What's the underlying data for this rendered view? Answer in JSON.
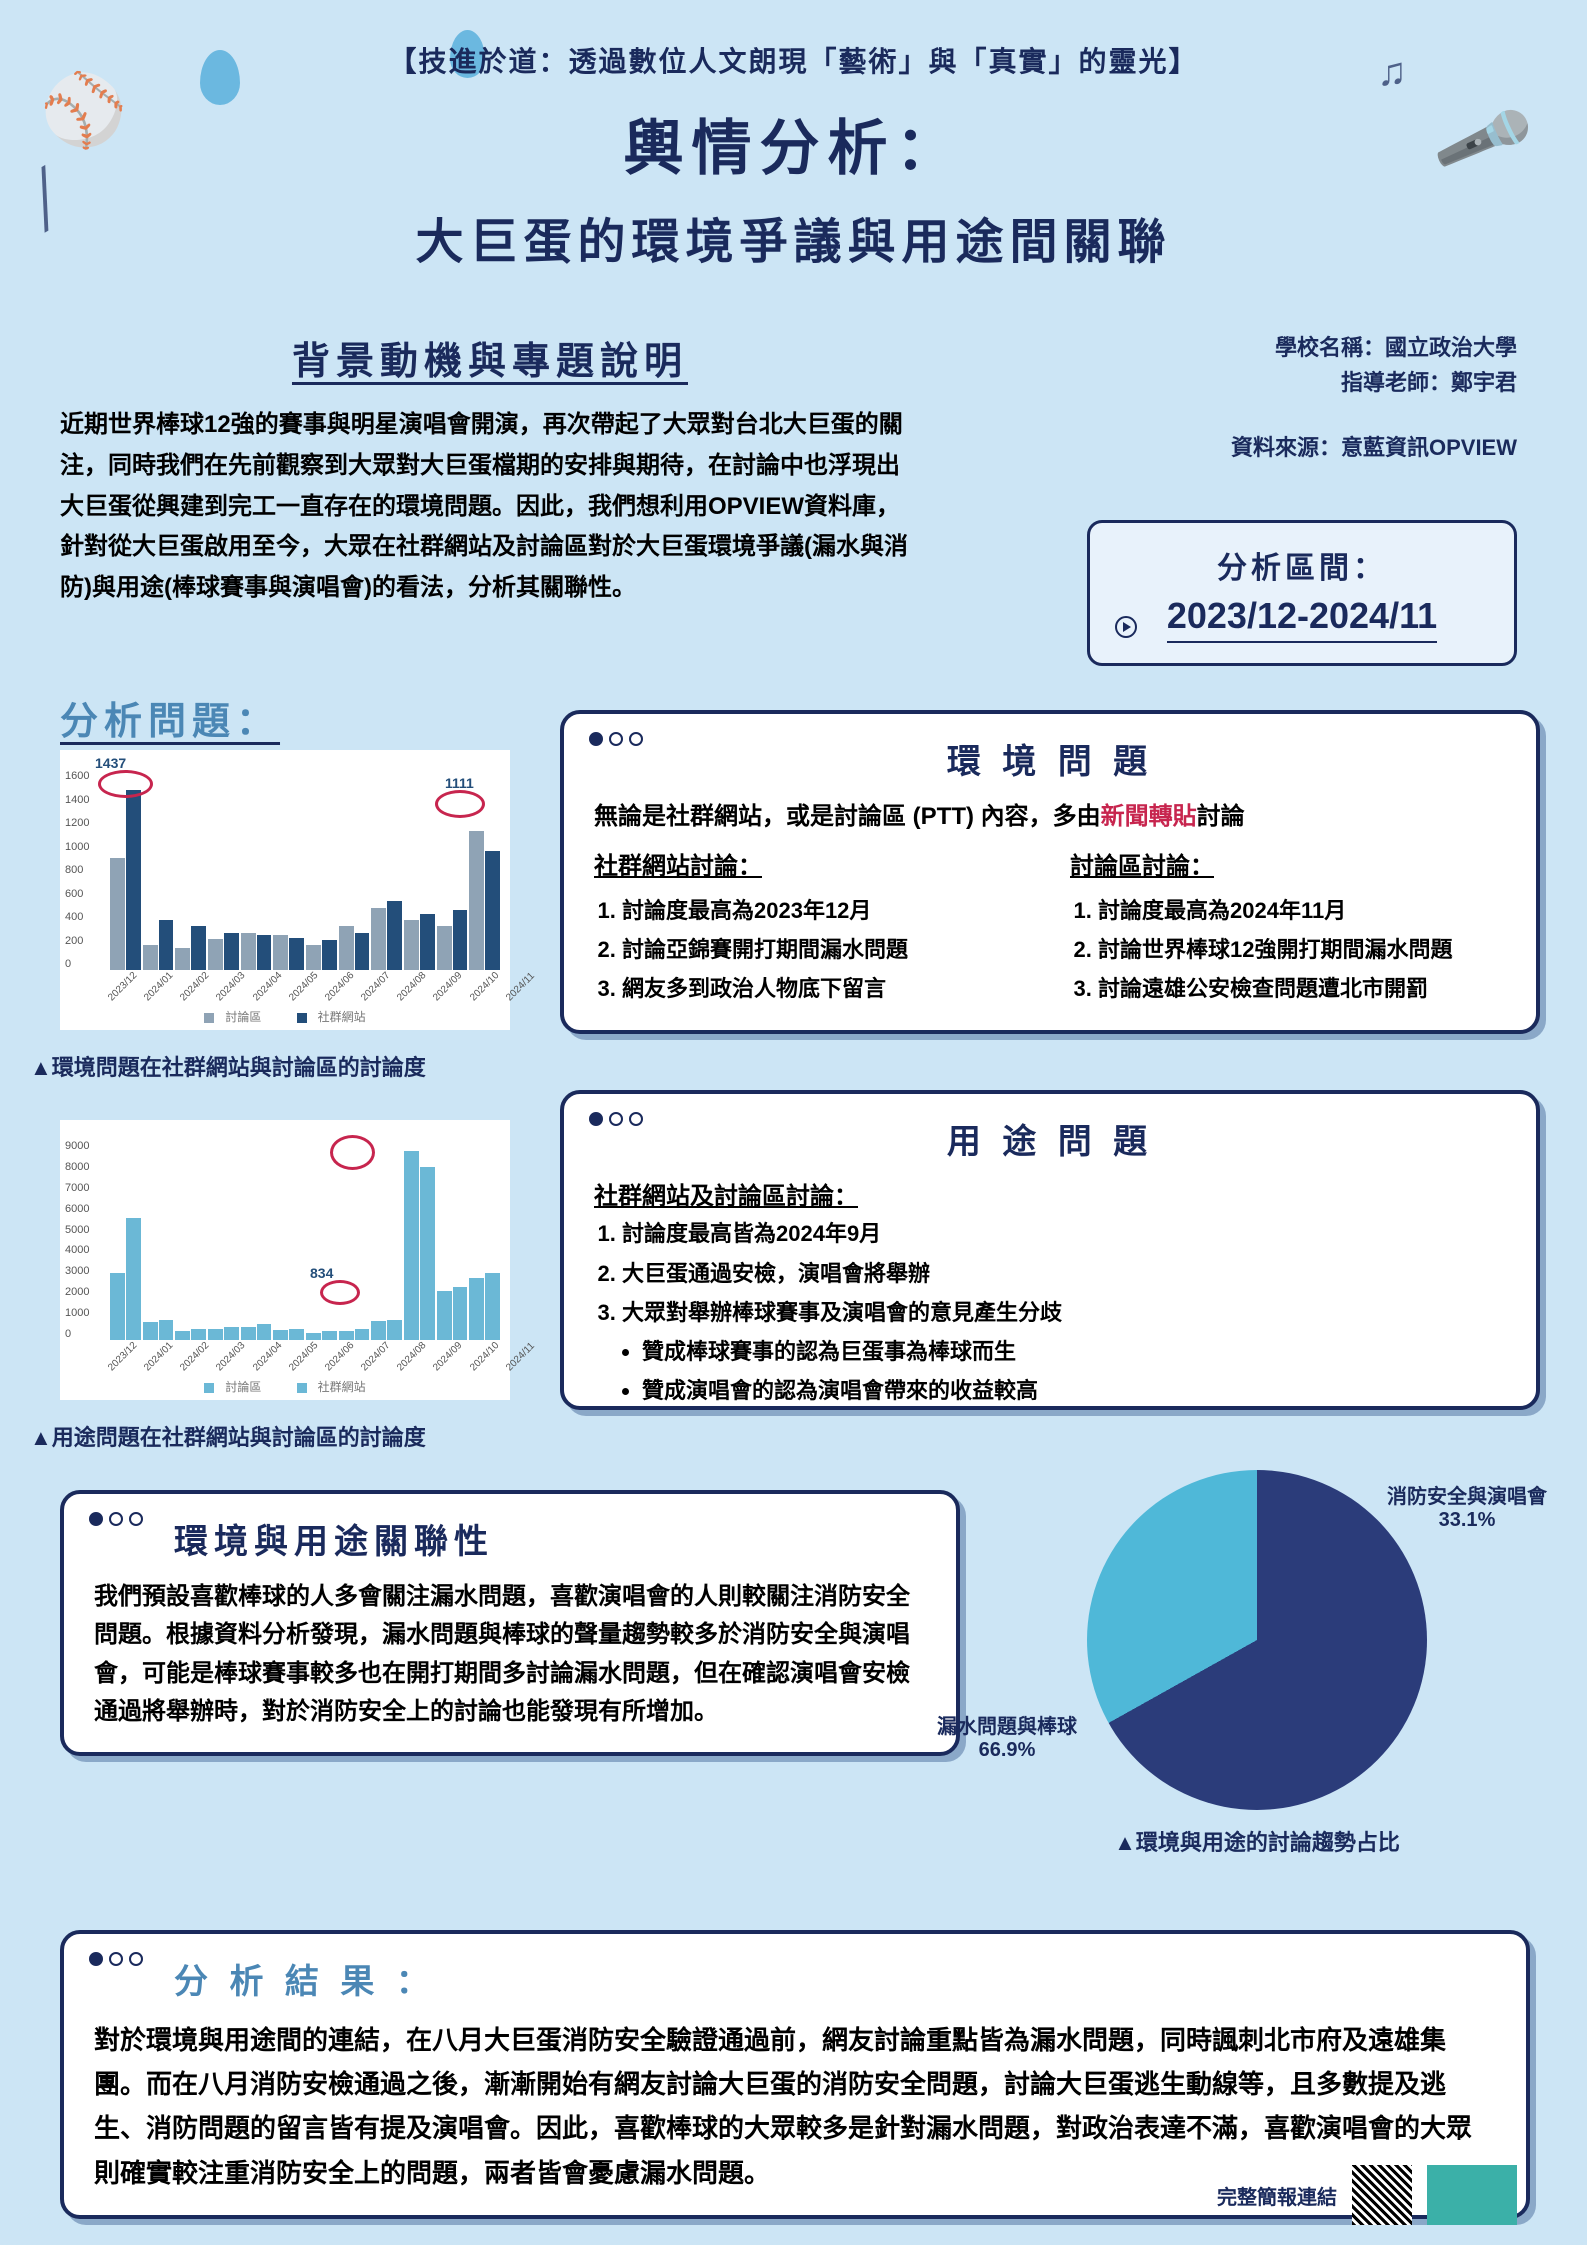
{
  "header": {
    "subtitle": "【技進於道：透過數位人文朗現「藝術」與「真實」的靈光】",
    "title1": "輿情分析：",
    "title2": "大巨蛋的環境爭議與用途間關聯"
  },
  "meta": {
    "school_label": "學校名稱：國立政治大學",
    "teacher_label": "指導老師：鄭宇君",
    "source_label": "資料來源：意藍資訊OPVIEW"
  },
  "background": {
    "label": "背景動機與專題說明",
    "text": "近期世界棒球12強的賽事與明星演唱會開演，再次帶起了大眾對台北大巨蛋的關注，同時我們在先前觀察到大眾對大巨蛋檔期的安排與期待，在討論中也浮現出大巨蛋從興建到完工一直存在的環境問題。因此，我們想利用OPVIEW資料庫，針對從大巨蛋啟用至今，大眾在社群網站及討論區對於大巨蛋環境爭議(漏水與消防)與用途(棒球賽事與演唱會)的看法，分析其關聯性。"
  },
  "period": {
    "label": "分析區間：",
    "value": "2023/12-2024/11"
  },
  "analysis_q_label": "分析問題：",
  "chart1": {
    "type": "bar",
    "caption": "▲環境問題在社群網站與討論區的討論度",
    "series_labels": [
      "討論區",
      "社群網站"
    ],
    "colors": [
      "#8fa3b5",
      "#234e7a"
    ],
    "categories": [
      "2023/12",
      "2024/01",
      "2024/02",
      "2024/03",
      "2024/04",
      "2024/05",
      "2024/06",
      "2024/07",
      "2024/08",
      "2024/09",
      "2024/10",
      "2024/11"
    ],
    "s1": [
      900,
      200,
      180,
      250,
      300,
      280,
      200,
      350,
      500,
      400,
      350,
      1111
    ],
    "s2": [
      1437,
      400,
      350,
      300,
      280,
      260,
      240,
      300,
      550,
      450,
      480,
      950
    ],
    "ymax": 1600,
    "ytick": 200,
    "highlight_vals": [
      "1437",
      "1111"
    ]
  },
  "chart2": {
    "type": "bar",
    "caption": "▲用途問題在社群網站與討論區的討論度",
    "series_labels": [
      "討論區",
      "社群網站"
    ],
    "colors": [
      "#6bb8d6",
      "#6bb8d6"
    ],
    "categories": [
      "2023/12",
      "2024/01",
      "2024/02",
      "2024/03",
      "2024/04",
      "2024/05",
      "2024/06",
      "2024/07",
      "2024/08",
      "2024/09",
      "2024/10",
      "2024/11"
    ],
    "s1": [
      3000,
      800,
      400,
      500,
      600,
      450,
      300,
      400,
      834,
      8500,
      2200,
      2800
    ],
    "s2": [
      5500,
      900,
      500,
      600,
      700,
      500,
      400,
      500,
      900,
      7800,
      2400,
      3000
    ],
    "ymax": 9000,
    "ytick": 1000,
    "highlight_vals": [
      "834"
    ]
  },
  "env_box": {
    "title": "環 境 問 題",
    "intro_pre": "無論是社群網站，或是討論區 (PTT) 內容，多由",
    "intro_red": "新聞轉貼",
    "intro_post": "討論",
    "col1_h": "社群網站討論：",
    "col1": [
      "討論度最高為2023年12月",
      "討論亞錦賽開打期間漏水問題",
      "網友多到政治人物底下留言"
    ],
    "col2_h": "討論區討論：",
    "col2": [
      "討論度最高為2024年11月",
      "討論世界棒球12強開打期間漏水問題",
      "討論遠雄公安檢查問題遭北市開罰"
    ]
  },
  "use_box": {
    "title": "用 途 問 題",
    "sub_h": "社群網站及討論區討論：",
    "items": [
      "討論度最高皆為2024年9月",
      "大巨蛋通過安檢，演唱會將舉辦",
      "大眾對舉辦棒球賽事及演唱會的意見產生分歧"
    ],
    "subitems": [
      "贊成棒球賽事的認為巨蛋事為棒球而生",
      "贊成演唱會的認為演唱會帶來的收益較高"
    ]
  },
  "rel_box": {
    "title": "環境與用途關聯性",
    "text": "我們預設喜歡棒球的人多會關注漏水問題，喜歡演唱會的人則較關注消防安全問題。根據資料分析發現，漏水問題與棒球的聲量趨勢較多於消防安全與演唱會，可能是棒球賽事較多也在開打期間多討論漏水問題，但在確認演唱會安檢通過將舉辦時，對於消防安全上的討論也能發現有所增加。"
  },
  "pie": {
    "type": "pie",
    "caption": "▲環境與用途的討論趨勢占比",
    "slices": [
      {
        "label": "漏水問題與棒球",
        "value": 66.9,
        "color": "#2b3c7a"
      },
      {
        "label": "消防安全與演唱會",
        "value": 33.1,
        "color": "#4fb8d8"
      }
    ]
  },
  "result_box": {
    "title": "分 析 結 果 ：",
    "text": "對於環境與用途間的連結，在八月大巨蛋消防安全驗證通過前，網友討論重點皆為漏水問題，同時諷刺北市府及遠雄集團。而在八月消防安檢通過之後，漸漸開始有網友討論大巨蛋的消防安全問題，討論大巨蛋逃生動線等，且多數提及逃生、消防問題的留言皆有提及演唱會。因此，喜歡棒球的大眾較多是針對漏水問題，對政治表達不滿，喜歡演唱會的大眾則確實較注重消防安全上的問題，兩者皆會憂慮漏水問題。"
  },
  "footer": {
    "link_label": "完整簡報連結"
  }
}
